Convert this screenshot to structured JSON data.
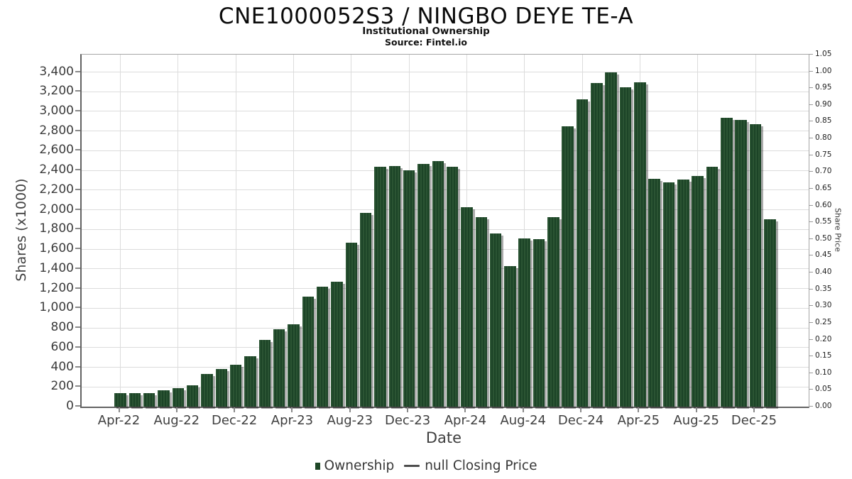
{
  "header": {
    "title": "CNE1000052S3 / NINGBO DEYE TE-A",
    "subtitle": "Institutional Ownership",
    "source": "Source: Fintel.io"
  },
  "axes": {
    "x": {
      "label": "Date",
      "tick_labels": [
        "Apr-22",
        "Aug-22",
        "Dec-22",
        "Apr-23",
        "Aug-23",
        "Dec-23",
        "Apr-24",
        "Aug-24",
        "Dec-24",
        "Apr-25",
        "Aug-25",
        "Dec-25"
      ],
      "tick_every_months": 4
    },
    "y_left": {
      "label": "Shares (x1000)",
      "min": 0,
      "max": 3400,
      "step": 200
    },
    "y_right": {
      "label": "Share Price",
      "min": 0.0,
      "max": 1.05,
      "step": 0.05
    }
  },
  "legend": {
    "ownership_label": "Ownership",
    "price_label": "null Closing Price"
  },
  "colors": {
    "bar_dark": "#1c4427",
    "bar_light": "#2b5433",
    "bar_shadow": "rgba(0,0,0,0.33)",
    "legend_green": "#1e4727",
    "grid": "#dcdcdc",
    "tick": "#8a8a8a"
  },
  "chart_data": {
    "type": "bar",
    "title": "CNE1000052S3 / NINGBO DEYE TE-A",
    "subtitle": "Institutional Ownership",
    "source": "Source: Fintel.io",
    "xlabel": "Date",
    "ylabel_left": "Shares (x1000)",
    "ylabel_right": "Share Price",
    "ylim_left": [
      0,
      3400
    ],
    "ylim_right": [
      0,
      1.05
    ],
    "grid": true,
    "legend_position": "bottom",
    "categories": [
      "Apr-22",
      "May-22",
      "Jun-22",
      "Jul-22",
      "Aug-22",
      "Sep-22",
      "Oct-22",
      "Nov-22",
      "Dec-22",
      "Jan-23",
      "Feb-23",
      "Mar-23",
      "Apr-23",
      "May-23",
      "Jun-23",
      "Jul-23",
      "Aug-23",
      "Sep-23",
      "Oct-23",
      "Nov-23",
      "Dec-23",
      "Jan-24",
      "Feb-24",
      "Mar-24",
      "Apr-24",
      "May-24",
      "Jun-24",
      "Jul-24",
      "Aug-24",
      "Sep-24",
      "Oct-24",
      "Nov-24",
      "Dec-24",
      "Jan-25",
      "Feb-25",
      "Mar-25",
      "Apr-25",
      "May-25",
      "Jun-25",
      "Jul-25",
      "Aug-25",
      "Sep-25",
      "Oct-25",
      "Nov-25",
      "Dec-25",
      "Jan-26"
    ],
    "series": [
      {
        "name": "Ownership",
        "axis": "left",
        "values": [
          140,
          140,
          135,
          165,
          185,
          215,
          335,
          385,
          428,
          510,
          675,
          785,
          835,
          1115,
          1220,
          1270,
          1665,
          1970,
          2440,
          2448,
          2400,
          2468,
          2492,
          2440,
          2025,
          1925,
          1760,
          1430,
          1710,
          1700,
          1922,
          2845,
          3120,
          3288,
          3395,
          3248,
          3298,
          2318,
          2280,
          2305,
          2345,
          2436,
          2938,
          2912,
          2870,
          1905
        ]
      },
      {
        "name": "null Closing Price",
        "axis": "right",
        "values": []
      }
    ]
  }
}
